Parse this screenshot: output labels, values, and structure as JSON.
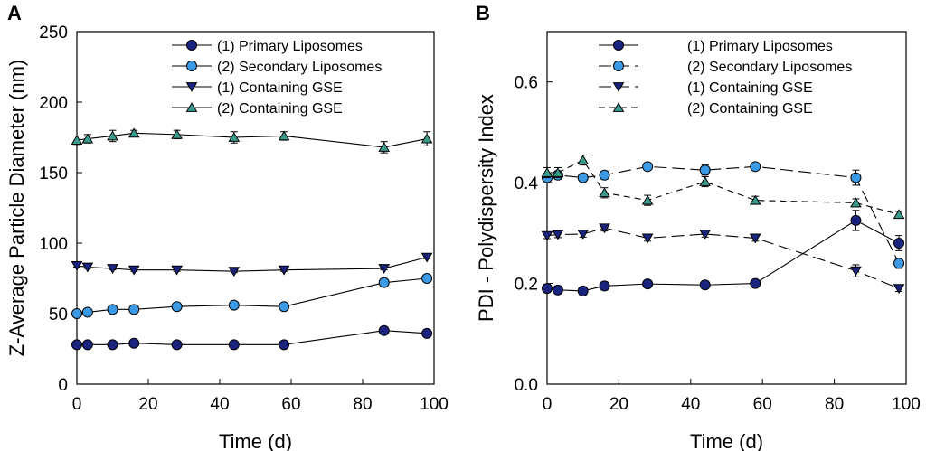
{
  "colors": {
    "primary": "#1a237e",
    "secondary": "#3a9ae6",
    "gse1": "#1a237e",
    "gse2": "#3a9a8c",
    "axis": "#000000"
  },
  "chart_data": [
    {
      "panel_label": "A",
      "type": "line",
      "title": "",
      "xlabel": "Time (d)",
      "ylabel": "Z-Average Particle Diameter (nm)",
      "xlim": [
        0,
        100
      ],
      "ylim": [
        0,
        250
      ],
      "xticks": [
        0,
        20,
        40,
        60,
        80,
        100
      ],
      "yticks": [
        0,
        50,
        100,
        150,
        200,
        250
      ],
      "xtick_labels": [
        "0",
        "20",
        "40",
        "60",
        "80",
        "100"
      ],
      "ytick_labels": [
        "0",
        "50",
        "100",
        "150",
        "200",
        "250"
      ],
      "legend_position": "top-right",
      "series": [
        {
          "name": "(1) Primary Liposomes",
          "marker": "circle",
          "color_key": "primary",
          "dash": "solid",
          "x": [
            0,
            3,
            10,
            16,
            28,
            44,
            58,
            86,
            98
          ],
          "y": [
            28,
            28,
            28,
            29,
            28,
            28,
            28,
            38,
            36
          ],
          "err": [
            1,
            1,
            1,
            1,
            1,
            1,
            1,
            1.5,
            1.5
          ]
        },
        {
          "name": "(2) Secondary Liposomes",
          "marker": "circle",
          "color_key": "secondary",
          "dash": "solid",
          "x": [
            0,
            3,
            10,
            16,
            28,
            44,
            58,
            86,
            98
          ],
          "y": [
            50,
            51,
            53,
            53,
            55,
            56,
            55,
            72,
            75
          ],
          "err": [
            1,
            1,
            1,
            1,
            1,
            1,
            1,
            1.5,
            1.5
          ]
        },
        {
          "name": "(1) Containing GSE",
          "marker": "triangle-down",
          "color_key": "gse1",
          "dash": "solid",
          "x": [
            0,
            3,
            10,
            16,
            28,
            44,
            58,
            86,
            98
          ],
          "y": [
            84,
            83,
            82,
            81,
            81,
            80,
            81,
            82,
            90
          ],
          "err": [
            1,
            1,
            1,
            1,
            1,
            1,
            1,
            1,
            1
          ]
        },
        {
          "name": "(2) Containing GSE",
          "marker": "triangle-up",
          "color_key": "gse2",
          "dash": "solid",
          "x": [
            0,
            3,
            10,
            16,
            28,
            44,
            58,
            86,
            98
          ],
          "y": [
            173,
            174,
            176,
            178,
            177,
            175,
            176,
            168,
            174
          ],
          "err": [
            3,
            3,
            4,
            2,
            3,
            4,
            3,
            4,
            5
          ]
        }
      ]
    },
    {
      "panel_label": "B",
      "type": "line",
      "title": "",
      "xlabel": "Time (d)",
      "ylabel": "PDI - Polydispersity Index",
      "xlim": [
        0,
        100
      ],
      "ylim": [
        0,
        0.7
      ],
      "xticks": [
        0,
        20,
        40,
        60,
        80,
        100
      ],
      "yticks": [
        0,
        0.2,
        0.4,
        0.6
      ],
      "xtick_labels": [
        "0",
        "20",
        "40",
        "60",
        "80",
        "100"
      ],
      "ytick_labels": [
        "0.0",
        "0.2",
        "0.4",
        "0.6"
      ],
      "legend_position": "top-right",
      "series": [
        {
          "name": "(1) Primary Liposomes",
          "marker": "circle",
          "color_key": "primary",
          "dash": "solid",
          "x": [
            0,
            3,
            10,
            16,
            28,
            44,
            58,
            86,
            98
          ],
          "y": [
            0.19,
            0.187,
            0.185,
            0.195,
            0.199,
            0.197,
            0.2,
            0.325,
            0.28
          ],
          "err": [
            0.008,
            0.008,
            0.008,
            0.008,
            0.006,
            0.006,
            0.006,
            0.02,
            0.015
          ]
        },
        {
          "name": "(2) Secondary Liposomes",
          "marker": "circle",
          "color_key": "secondary",
          "dash": "long-dash",
          "x": [
            0,
            3,
            10,
            16,
            28,
            44,
            58,
            86,
            98
          ],
          "y": [
            0.41,
            0.415,
            0.41,
            0.415,
            0.432,
            0.425,
            0.432,
            0.41,
            0.24
          ],
          "err": [
            0.008,
            0.008,
            0.008,
            0.008,
            0.006,
            0.01,
            0.006,
            0.015,
            0.01
          ]
        },
        {
          "name": "(1) Containing GSE",
          "marker": "triangle-down",
          "color_key": "gse1",
          "dash": "long-dash",
          "x": [
            0,
            3,
            10,
            16,
            28,
            44,
            58,
            86,
            98
          ],
          "y": [
            0.295,
            0.297,
            0.298,
            0.31,
            0.29,
            0.298,
            0.29,
            0.225,
            0.19
          ],
          "err": [
            0.006,
            0.006,
            0.006,
            0.006,
            0.006,
            0.006,
            0.006,
            0.012,
            0.006
          ]
        },
        {
          "name": "(2) Containing GSE",
          "marker": "triangle-up",
          "color_key": "gse2",
          "dash": "short-dash",
          "x": [
            0,
            3,
            10,
            16,
            28,
            44,
            58,
            86,
            98
          ],
          "y": [
            0.42,
            0.42,
            0.445,
            0.38,
            0.365,
            0.402,
            0.365,
            0.36,
            0.337
          ],
          "err": [
            0.01,
            0.01,
            0.01,
            0.01,
            0.01,
            0.01,
            0.008,
            0.008,
            0.006
          ]
        }
      ]
    }
  ]
}
